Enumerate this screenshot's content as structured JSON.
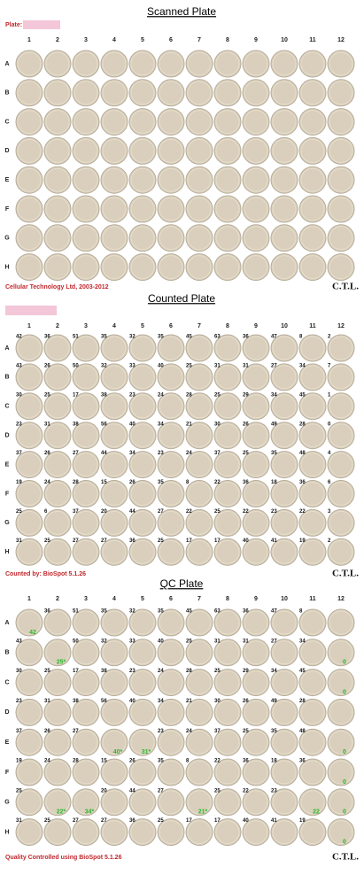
{
  "scanned": {
    "title": "Scanned Plate",
    "plate_label": "Plate:",
    "columns": [
      "1",
      "2",
      "3",
      "4",
      "5",
      "6",
      "7",
      "8",
      "9",
      "10",
      "11",
      "12"
    ],
    "rows": [
      "A",
      "B",
      "C",
      "D",
      "E",
      "F",
      "G",
      "H"
    ],
    "footer": "Cellular Technology Ltd, 2003-2012",
    "logo": "C.T.L."
  },
  "counted": {
    "title": "Counted Plate",
    "columns": [
      "1",
      "2",
      "3",
      "4",
      "5",
      "6",
      "7",
      "8",
      "9",
      "10",
      "11",
      "12"
    ],
    "rows": [
      "A",
      "B",
      "C",
      "D",
      "E",
      "F",
      "G",
      "H"
    ],
    "counts": [
      [
        42,
        36,
        51,
        35,
        32,
        35,
        45,
        63,
        36,
        47,
        8,
        2
      ],
      [
        43,
        26,
        50,
        32,
        33,
        40,
        25,
        31,
        31,
        27,
        34,
        7
      ],
      [
        30,
        25,
        17,
        38,
        23,
        24,
        28,
        25,
        29,
        34,
        45,
        1
      ],
      [
        23,
        31,
        38,
        56,
        40,
        34,
        21,
        30,
        26,
        49,
        28,
        0
      ],
      [
        37,
        26,
        27,
        44,
        34,
        23,
        24,
        37,
        25,
        35,
        48,
        4
      ],
      [
        19,
        24,
        28,
        15,
        26,
        35,
        8,
        22,
        36,
        18,
        36,
        6
      ],
      [
        25,
        6,
        37,
        20,
        44,
        27,
        22,
        25,
        22,
        23,
        22,
        3
      ],
      [
        31,
        25,
        27,
        27,
        36,
        25,
        17,
        17,
        40,
        41,
        19,
        2
      ]
    ],
    "footer": "Counted by: BioSpot 5.1.26",
    "logo": "C.T.L."
  },
  "qc": {
    "title": "QC Plate",
    "columns": [
      "1",
      "2",
      "3",
      "4",
      "5",
      "6",
      "7",
      "8",
      "9",
      "10",
      "11",
      "12"
    ],
    "rows": [
      "A",
      "B",
      "C",
      "D",
      "E",
      "F",
      "G",
      "H"
    ],
    "counts": [
      [
        null,
        36,
        51,
        35,
        32,
        35,
        45,
        63,
        36,
        47,
        8,
        null
      ],
      [
        43,
        null,
        50,
        32,
        33,
        40,
        25,
        31,
        31,
        27,
        34,
        null
      ],
      [
        30,
        25,
        17,
        38,
        23,
        24,
        28,
        25,
        29,
        34,
        45,
        null
      ],
      [
        23,
        31,
        38,
        56,
        40,
        34,
        21,
        30,
        26,
        49,
        28,
        null
      ],
      [
        37,
        26,
        27,
        null,
        null,
        23,
        24,
        37,
        25,
        35,
        48,
        null
      ],
      [
        19,
        24,
        28,
        15,
        26,
        35,
        8,
        22,
        36,
        18,
        36,
        null
      ],
      [
        25,
        null,
        null,
        20,
        44,
        27,
        null,
        25,
        22,
        23,
        null,
        null
      ],
      [
        31,
        25,
        27,
        27,
        36,
        25,
        17,
        17,
        40,
        41,
        19,
        null
      ]
    ],
    "corrections": [
      [
        "42",
        null,
        null,
        null,
        null,
        null,
        null,
        null,
        null,
        null,
        null,
        null
      ],
      [
        null,
        "25*",
        null,
        null,
        null,
        null,
        null,
        null,
        null,
        null,
        null,
        "0"
      ],
      [
        null,
        null,
        null,
        null,
        null,
        null,
        null,
        null,
        null,
        null,
        null,
        "0"
      ],
      [
        null,
        null,
        null,
        null,
        null,
        null,
        null,
        null,
        null,
        null,
        null,
        null
      ],
      [
        null,
        null,
        null,
        "40*",
        "31*",
        null,
        null,
        null,
        null,
        null,
        null,
        "0"
      ],
      [
        null,
        null,
        null,
        null,
        null,
        null,
        null,
        null,
        null,
        null,
        null,
        "0"
      ],
      [
        null,
        "22*",
        "34*",
        null,
        null,
        null,
        "21*",
        null,
        null,
        null,
        "22",
        "0"
      ],
      [
        null,
        null,
        null,
        null,
        null,
        null,
        null,
        null,
        null,
        null,
        null,
        "0"
      ]
    ],
    "footer": "Quality Controlled using BioSpot 5.1.26",
    "logo": "C.T.L."
  }
}
